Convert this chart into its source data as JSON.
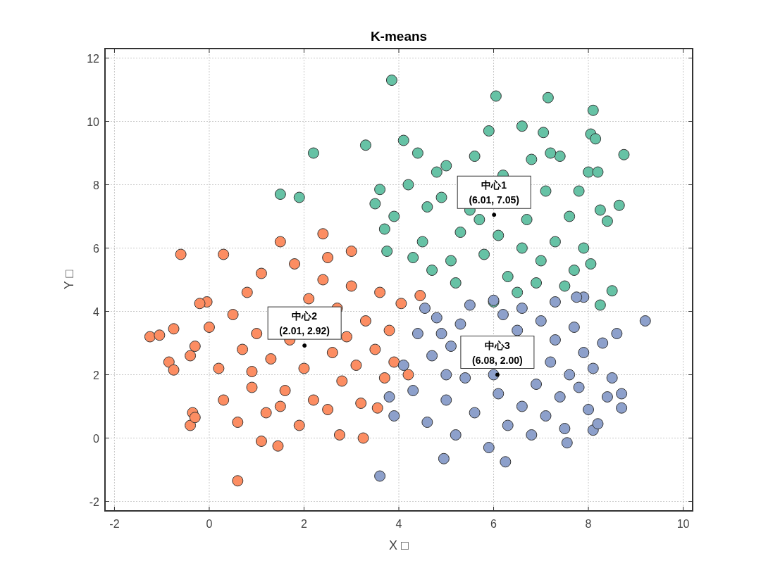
{
  "chart_data": {
    "type": "scatter",
    "title": "K-means",
    "xlabel": "X □",
    "ylabel": "Y □",
    "xlim": [
      -2.2,
      10.2
    ],
    "ylim": [
      -2.3,
      12.3
    ],
    "xticks": [
      -2,
      0,
      2,
      4,
      6,
      8,
      10
    ],
    "yticks": [
      -2,
      0,
      2,
      4,
      6,
      8,
      10,
      12
    ],
    "grid": true,
    "marker": "circle",
    "series": [
      {
        "color": "#66c2a5",
        "x": [
          3.85,
          6.05,
          7.15,
          8.1,
          2.2,
          3.3,
          1.5,
          1.9,
          8.75,
          8.05,
          8.15,
          8.65,
          8.5,
          3.75,
          4.1,
          6.6,
          7.05,
          8.25,
          8.4,
          8.05,
          8.25,
          3.6,
          3.5,
          3.7,
          3.9,
          4.2,
          4.4,
          4.5,
          4.7,
          4.9,
          5.0,
          5.2,
          5.3,
          5.5,
          5.6,
          5.8,
          5.9,
          6.1,
          6.2,
          6.3,
          6.5,
          6.7,
          6.8,
          7.0,
          7.1,
          7.3,
          7.4,
          7.5,
          7.6,
          7.8,
          7.9,
          8.0,
          6.0,
          5.1,
          4.6,
          5.7,
          6.6,
          7.2,
          4.3,
          6.9,
          7.7,
          8.2,
          4.8
        ],
        "values": [
          11.3,
          10.8,
          10.75,
          10.35,
          9.0,
          9.25,
          7.7,
          7.6,
          8.95,
          9.6,
          9.45,
          7.35,
          4.65,
          5.9,
          9.4,
          9.85,
          9.65,
          7.2,
          6.85,
          5.5,
          4.2,
          7.85,
          7.4,
          6.6,
          7.0,
          8.0,
          9.0,
          6.2,
          5.3,
          7.6,
          8.6,
          4.9,
          6.5,
          7.2,
          8.9,
          5.8,
          9.7,
          6.4,
          8.3,
          5.1,
          4.6,
          6.9,
          8.8,
          5.6,
          7.8,
          6.2,
          8.9,
          4.8,
          7.0,
          7.8,
          6.0,
          8.4,
          4.3,
          5.6,
          7.3,
          6.9,
          6.0,
          9.0,
          5.7,
          4.9,
          5.3,
          8.4,
          8.4
        ]
      },
      {
        "color": "#fc8d62",
        "x": [
          -1.25,
          -1.05,
          -0.75,
          -0.85,
          -0.75,
          -0.4,
          -0.35,
          -0.3,
          0.6,
          1.1,
          1.45,
          -0.05,
          -0.2,
          0.3,
          -0.6,
          1.5,
          2.4,
          3.0,
          2.75,
          3.25,
          3.55,
          4.05,
          4.45,
          4.2,
          -0.4,
          -0.3,
          0.0,
          0.2,
          0.3,
          0.5,
          0.6,
          0.7,
          0.8,
          0.9,
          1.0,
          1.1,
          1.2,
          1.3,
          1.6,
          1.7,
          1.8,
          1.9,
          2.0,
          2.1,
          2.2,
          2.4,
          2.5,
          2.6,
          2.7,
          2.8,
          2.9,
          3.0,
          3.1,
          3.2,
          3.3,
          3.5,
          3.6,
          3.7,
          3.8,
          3.9,
          1.5,
          0.9,
          2.5
        ],
        "values": [
          3.2,
          3.25,
          3.45,
          2.4,
          2.15,
          0.4,
          0.8,
          0.65,
          -1.35,
          -0.1,
          -0.25,
          4.3,
          4.25,
          5.8,
          5.8,
          6.2,
          6.45,
          5.9,
          0.1,
          0.0,
          0.95,
          4.25,
          4.5,
          2.0,
          2.6,
          2.9,
          3.5,
          2.2,
          1.2,
          3.9,
          0.5,
          2.8,
          4.6,
          1.6,
          3.3,
          5.2,
          0.8,
          2.5,
          1.5,
          3.1,
          5.5,
          0.4,
          2.2,
          4.4,
          1.2,
          5.0,
          0.9,
          2.7,
          4.1,
          1.8,
          3.2,
          4.8,
          2.3,
          1.1,
          3.7,
          2.8,
          4.6,
          1.9,
          3.4,
          2.4,
          1.0,
          2.1,
          5.7
        ]
      },
      {
        "color": "#8da0cb",
        "x": [
          3.6,
          4.95,
          6.25,
          9.2,
          8.6,
          8.7,
          8.7,
          8.4,
          7.9,
          7.75,
          6.0,
          4.55,
          3.9,
          3.8,
          8.1,
          8.2,
          7.55,
          4.1,
          4.3,
          4.4,
          4.6,
          4.7,
          4.8,
          5.0,
          5.1,
          5.2,
          5.3,
          5.4,
          5.5,
          5.6,
          5.9,
          6.1,
          6.2,
          6.3,
          6.5,
          6.6,
          6.8,
          6.9,
          7.0,
          7.1,
          7.2,
          7.3,
          7.4,
          7.5,
          7.6,
          7.7,
          7.8,
          7.9,
          8.0,
          8.1,
          8.3,
          8.5,
          6.0,
          5.0,
          4.9,
          6.6,
          7.3
        ],
        "values": [
          -1.2,
          -0.65,
          -0.75,
          3.7,
          3.3,
          1.4,
          0.95,
          1.3,
          4.45,
          4.45,
          4.35,
          4.1,
          0.7,
          1.3,
          0.25,
          0.45,
          -0.15,
          2.3,
          1.5,
          3.3,
          0.5,
          2.6,
          3.8,
          1.2,
          2.9,
          0.1,
          3.6,
          1.9,
          4.2,
          0.8,
          -0.3,
          1.4,
          3.9,
          0.4,
          3.4,
          1.0,
          0.1,
          1.7,
          3.7,
          0.7,
          2.4,
          3.1,
          1.3,
          0.3,
          2.0,
          3.5,
          1.6,
          2.7,
          0.9,
          2.2,
          3.0,
          1.9,
          2.0,
          2.0,
          3.3,
          4.1,
          4.3
        ]
      },
      {
        "color": "#000000",
        "x": [
          6.01,
          2.01,
          6.08
        ],
        "values": [
          7.05,
          2.92,
          2.0
        ]
      }
    ],
    "annotations": [
      {
        "text": "中心1\n(6.01, 7.05)",
        "x": 6.01,
        "y": 7.05
      },
      {
        "text": "中心2\n(2.01, 2.92)",
        "x": 2.01,
        "y": 2.92
      },
      {
        "text": "中心3\n(6.08, 2.00)",
        "x": 6.08,
        "y": 2.0
      }
    ]
  }
}
